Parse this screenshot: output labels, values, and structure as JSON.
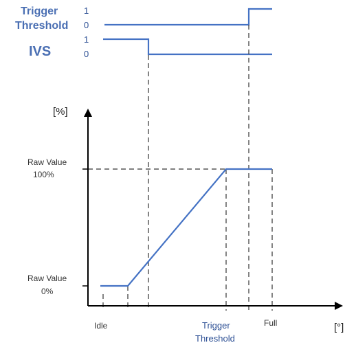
{
  "trigger_signal": {
    "name_line1": "Trigger",
    "name_line2": "Threshold",
    "level_high": "1",
    "level_low": "0"
  },
  "ivs_signal": {
    "name": "IVS",
    "level_high": "1",
    "level_low": "0"
  },
  "y_axis": {
    "unit": "[%]",
    "raw_100_line1": "Raw Value",
    "raw_100_line2": "100%",
    "raw_0_line1": "Raw Value",
    "raw_0_line2": "0%"
  },
  "x_axis": {
    "unit": "[°]",
    "idle": "Idle",
    "trigger_line1": "Trigger",
    "trigger_line2": "Threshold",
    "full": "Full"
  },
  "colors": {
    "signal": "#4472c4",
    "label_blue": "#4a6fb3",
    "axis": "#000000",
    "dashed": "#333333"
  }
}
